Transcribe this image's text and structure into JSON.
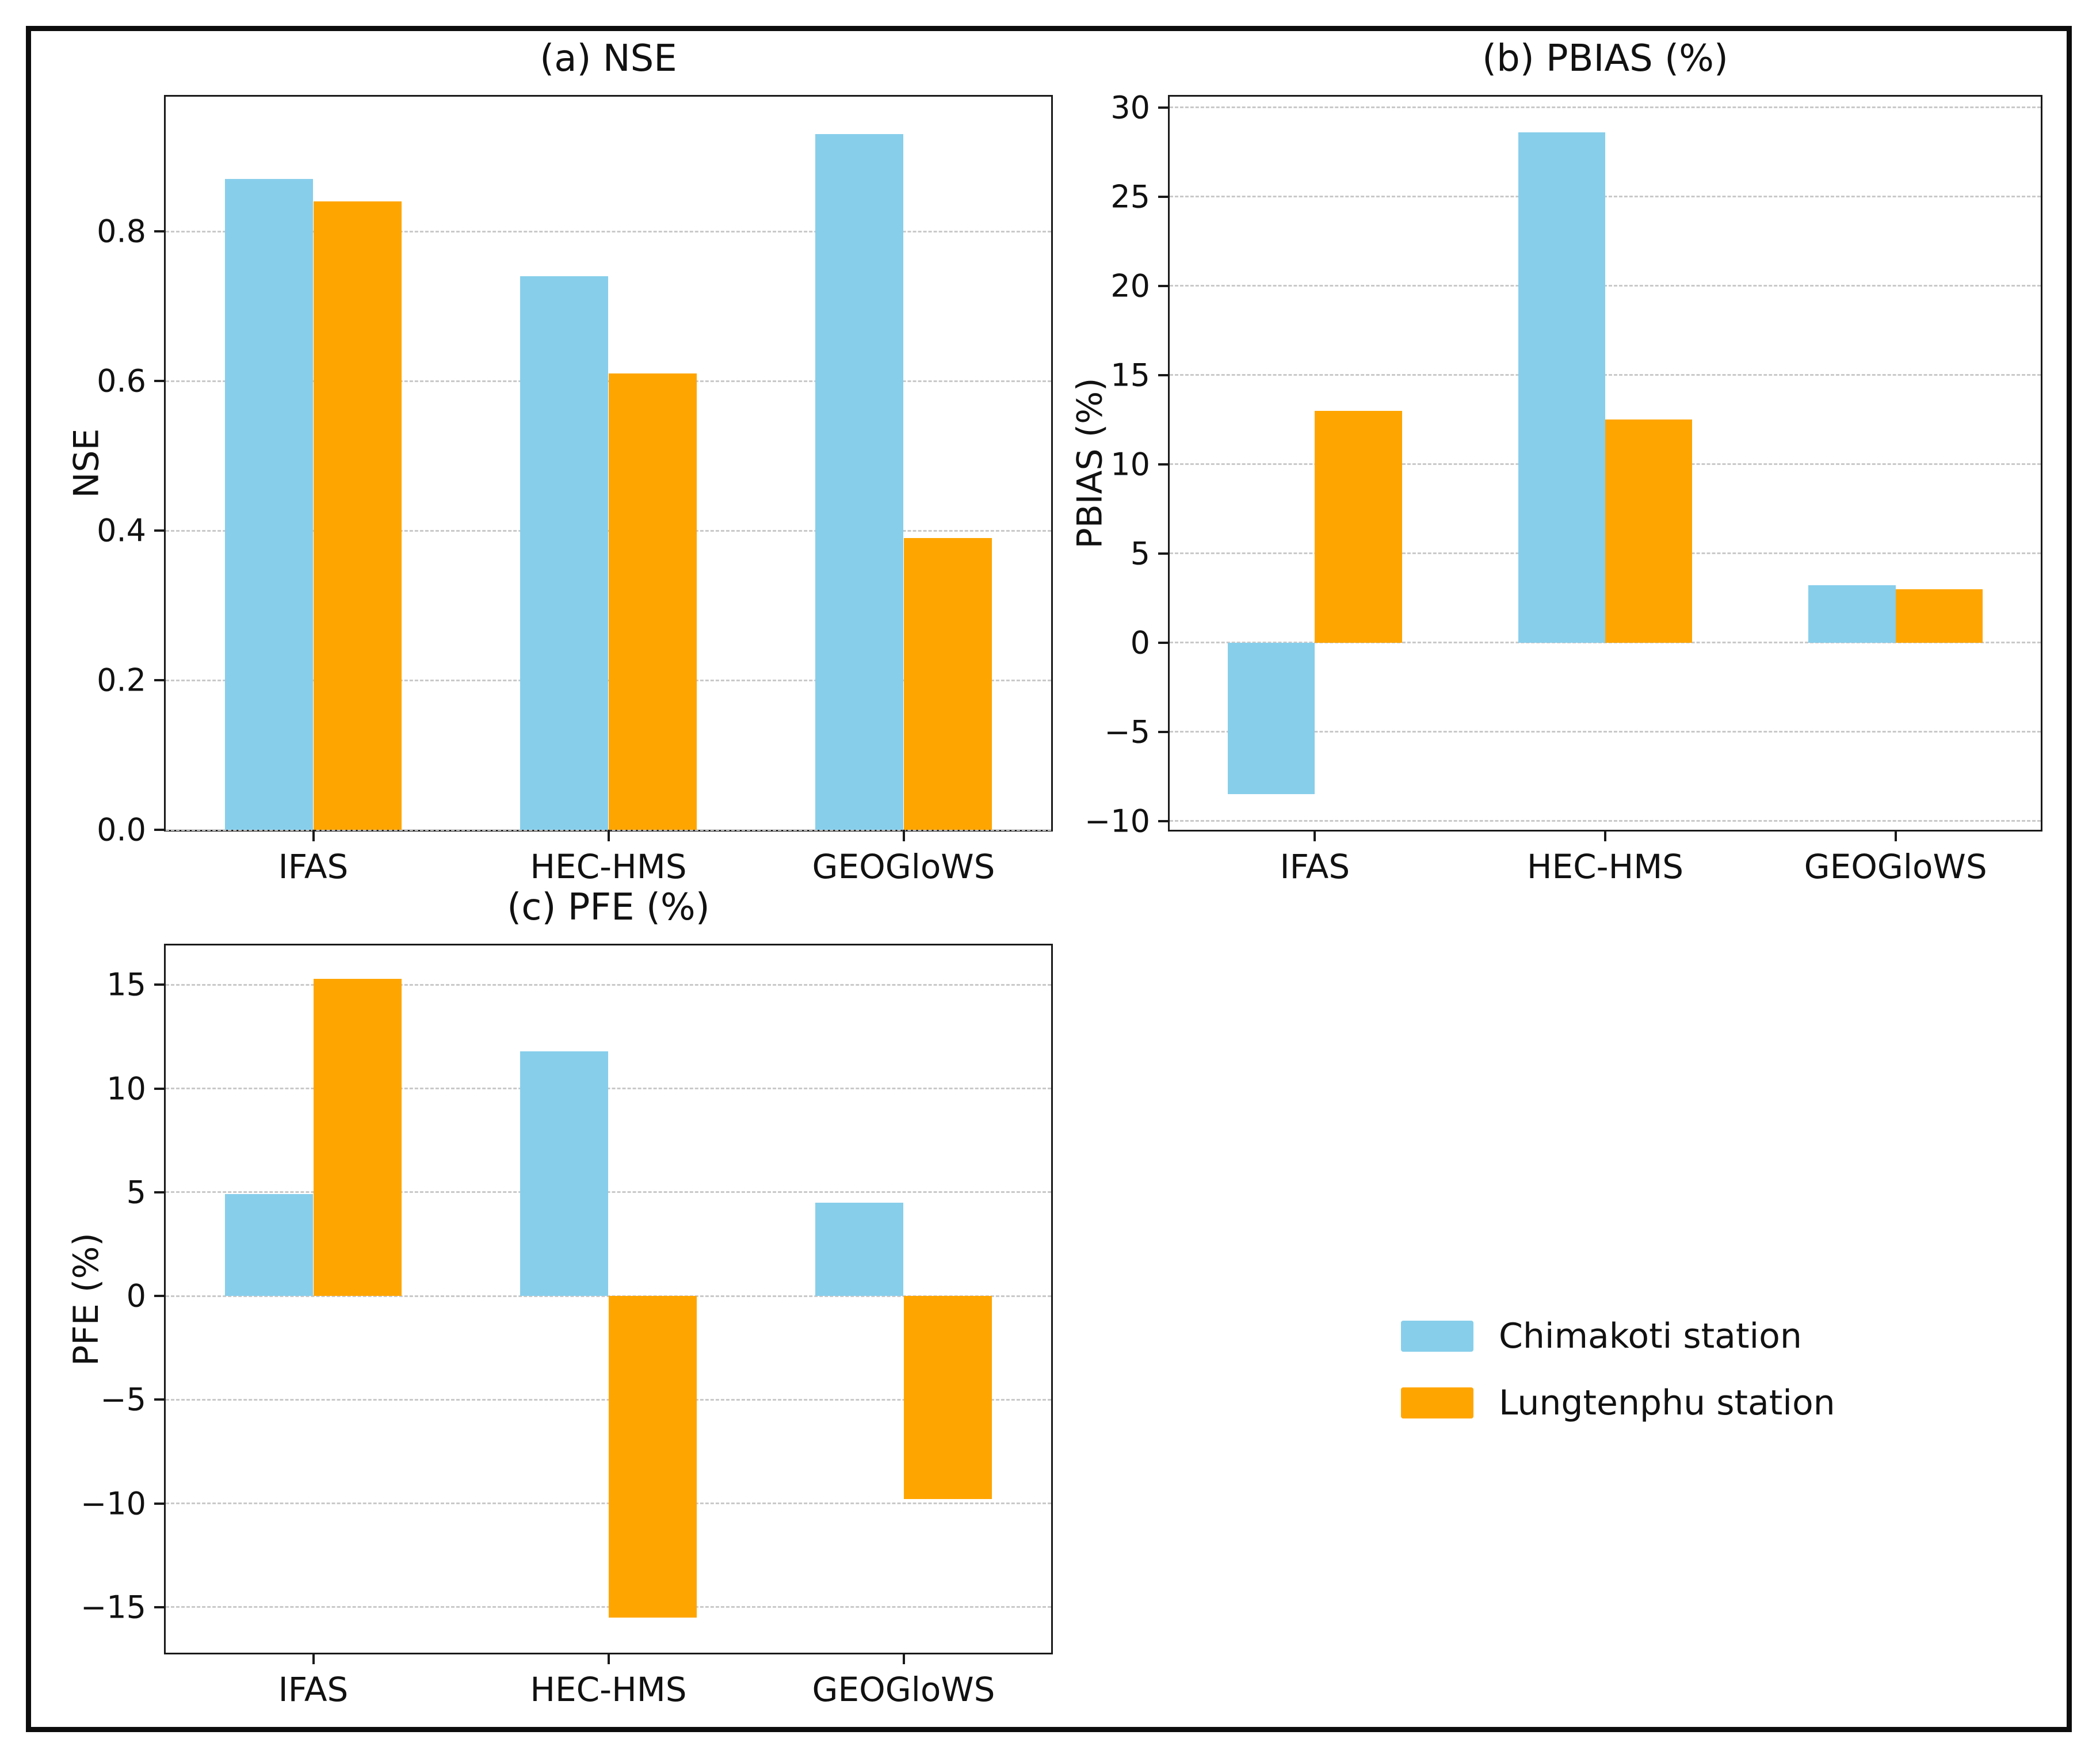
{
  "figure": {
    "background": "#ffffff",
    "border_color": "#0d0d0d"
  },
  "colors": {
    "chimakoti": "#87CEEB",
    "lungtenphu": "#FFA500",
    "grid": "#c9c9c9",
    "spine": "#1a1a1a",
    "text": "#111111"
  },
  "legend": {
    "items": [
      {
        "label": "Chimakoti station",
        "color": "#87CEEB"
      },
      {
        "label": "Lungtenphu station",
        "color": "#FFA500"
      }
    ]
  },
  "chart_data": [
    {
      "id": "nse",
      "type": "bar",
      "title": "(a) NSE",
      "ylabel": "NSE",
      "xlabel": "",
      "categories": [
        "IFAS",
        "HEC-HMS",
        "GEOGloWS"
      ],
      "series": [
        {
          "name": "Chimakoti station",
          "color_key": "chimakoti",
          "values": [
            0.87,
            0.74,
            0.93
          ]
        },
        {
          "name": "Lungtenphu station",
          "color_key": "lungtenphu",
          "values": [
            0.84,
            0.61,
            0.39
          ]
        }
      ],
      "ylim": [
        0,
        0.98
      ],
      "yticks": [
        0.0,
        0.2,
        0.4,
        0.6,
        0.8
      ],
      "ytick_labels": [
        "0.0",
        "0.2",
        "0.4",
        "0.6",
        "0.8"
      ],
      "grid": true,
      "legend_position": "none"
    },
    {
      "id": "pbias",
      "type": "bar",
      "title": "(b) PBIAS (%)",
      "ylabel": "PBIAS (%)",
      "xlabel": "",
      "categories": [
        "IFAS",
        "HEC-HMS",
        "GEOGloWS"
      ],
      "series": [
        {
          "name": "Chimakoti station",
          "color_key": "chimakoti",
          "values": [
            -8.5,
            28.6,
            3.2
          ]
        },
        {
          "name": "Lungtenphu station",
          "color_key": "lungtenphu",
          "values": [
            13.0,
            12.5,
            3.0
          ]
        }
      ],
      "ylim": [
        -10.5,
        30.6
      ],
      "yticks": [
        -10,
        -5,
        0,
        5,
        10,
        15,
        20,
        25,
        30
      ],
      "ytick_labels": [
        "−10",
        "−5",
        "0",
        "5",
        "10",
        "15",
        "20",
        "25",
        "30"
      ],
      "grid": true,
      "legend_position": "none"
    },
    {
      "id": "pfe",
      "type": "bar",
      "title": "(c) PFE (%)",
      "ylabel": "PFE (%)",
      "xlabel": "",
      "categories": [
        "IFAS",
        "HEC-HMS",
        "GEOGloWS"
      ],
      "series": [
        {
          "name": "Chimakoti station",
          "color_key": "chimakoti",
          "values": [
            4.9,
            11.8,
            4.5
          ]
        },
        {
          "name": "Lungtenphu station",
          "color_key": "lungtenphu",
          "values": [
            15.3,
            -15.5,
            -9.8
          ]
        }
      ],
      "ylim": [
        -17.2,
        16.9
      ],
      "yticks": [
        -15,
        -10,
        -5,
        0,
        5,
        10,
        15
      ],
      "ytick_labels": [
        "−15",
        "−10",
        "−5",
        "0",
        "5",
        "10",
        "15"
      ],
      "grid": true,
      "legend_position": "none"
    }
  ]
}
